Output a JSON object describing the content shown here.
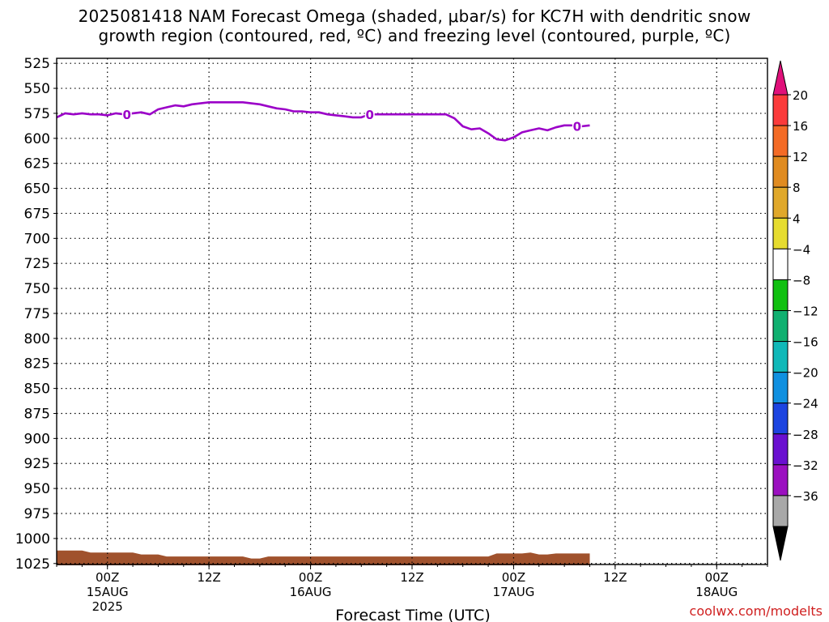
{
  "title": {
    "line1": "2025081418 NAM Forecast Omega (shaded, μbar/s) for KC7H with dendritic snow",
    "line2": "growth region (contoured, red, ºC) and freezing level (contoured, purple, ºC)"
  },
  "credit": "coolwx.com/modelts",
  "chart_data": {
    "type": "contour-timeheight",
    "xlabel": "Forecast Time (UTC)",
    "ylabel": "",
    "x_range_hours": [
      -6,
      78
    ],
    "y_range_mb": [
      520,
      1026
    ],
    "y_ticks": [
      525,
      550,
      575,
      600,
      625,
      650,
      675,
      700,
      725,
      750,
      775,
      800,
      825,
      850,
      875,
      900,
      925,
      950,
      975,
      1000,
      1025
    ],
    "x_ticks": [
      {
        "hour": 0,
        "label": "00Z",
        "sub1": "15AUG",
        "sub2": "2025"
      },
      {
        "hour": 12,
        "label": "12Z",
        "sub1": "",
        "sub2": ""
      },
      {
        "hour": 24,
        "label": "00Z",
        "sub1": "16AUG",
        "sub2": ""
      },
      {
        "hour": 36,
        "label": "12Z",
        "sub1": "",
        "sub2": ""
      },
      {
        "hour": 48,
        "label": "00Z",
        "sub1": "17AUG",
        "sub2": ""
      },
      {
        "hour": 60,
        "label": "12Z",
        "sub1": "",
        "sub2": ""
      },
      {
        "hour": 72,
        "label": "00Z",
        "sub1": "18AUG",
        "sub2": ""
      }
    ],
    "grid": true,
    "freezing_level": {
      "label": "0",
      "color": "#9b00c8",
      "label_hours": [
        2.3,
        31,
        55.5
      ],
      "points": [
        [
          -6,
          579
        ],
        [
          -5,
          575
        ],
        [
          -4,
          576
        ],
        [
          -3,
          575
        ],
        [
          -2,
          576
        ],
        [
          -1,
          576
        ],
        [
          0,
          577
        ],
        [
          1,
          575
        ],
        [
          2,
          576
        ],
        [
          3,
          575
        ],
        [
          4,
          574
        ],
        [
          5,
          576
        ],
        [
          6,
          571
        ],
        [
          7,
          569
        ],
        [
          8,
          567
        ],
        [
          9,
          568
        ],
        [
          10,
          566
        ],
        [
          11,
          565
        ],
        [
          12,
          564
        ],
        [
          13,
          564
        ],
        [
          14,
          564
        ],
        [
          15,
          564
        ],
        [
          16,
          564
        ],
        [
          17,
          565
        ],
        [
          18,
          566
        ],
        [
          19,
          568
        ],
        [
          20,
          570
        ],
        [
          21,
          571
        ],
        [
          22,
          573
        ],
        [
          23,
          573
        ],
        [
          24,
          574
        ],
        [
          25,
          574
        ],
        [
          26,
          576
        ],
        [
          27,
          577
        ],
        [
          28,
          578
        ],
        [
          29,
          579
        ],
        [
          30,
          579
        ],
        [
          31,
          576
        ],
        [
          32,
          576
        ],
        [
          33,
          576
        ],
        [
          34,
          576
        ],
        [
          35,
          576
        ],
        [
          36,
          576
        ],
        [
          37,
          576
        ],
        [
          38,
          576
        ],
        [
          39,
          576
        ],
        [
          40,
          576
        ],
        [
          41,
          580
        ],
        [
          42,
          588
        ],
        [
          43,
          591
        ],
        [
          44,
          590
        ],
        [
          45,
          595
        ],
        [
          46,
          601
        ],
        [
          47,
          602
        ],
        [
          48,
          599
        ],
        [
          49,
          594
        ],
        [
          50,
          592
        ],
        [
          51,
          590
        ],
        [
          52,
          592
        ],
        [
          53,
          589
        ],
        [
          54,
          587
        ],
        [
          55,
          587
        ],
        [
          56,
          588
        ],
        [
          57,
          587
        ]
      ]
    },
    "terrain": {
      "color": "#a0522d",
      "points": [
        [
          -6,
          1012
        ],
        [
          -3,
          1012
        ],
        [
          -2,
          1014
        ],
        [
          3,
          1014
        ],
        [
          4,
          1016
        ],
        [
          6,
          1016
        ],
        [
          7,
          1018
        ],
        [
          16,
          1018
        ],
        [
          17,
          1020
        ],
        [
          18,
          1020
        ],
        [
          19,
          1018
        ],
        [
          45,
          1018
        ],
        [
          46,
          1015
        ],
        [
          49,
          1015
        ],
        [
          50,
          1014
        ],
        [
          51,
          1016
        ],
        [
          52,
          1016
        ],
        [
          53,
          1015
        ],
        [
          57,
          1015
        ]
      ]
    },
    "colorbar": {
      "labels": [
        "20",
        "16",
        "12",
        "8",
        "4",
        "−4",
        "−8",
        "−12",
        "−16",
        "−20",
        "−24",
        "−28",
        "−32",
        "−36"
      ],
      "colors": [
        "#fb3b3b",
        "#f46b26",
        "#e08b20",
        "#e0a82a",
        "#e6dc2f",
        "#ffffff",
        "#10c010",
        "#10b070",
        "#10b8b8",
        "#1090e0",
        "#1c44e0",
        "#6a10d0",
        "#9b10c0",
        "#a8a8a8"
      ],
      "top_cap": "#e0107a",
      "bottom_cap": "#000000"
    }
  }
}
